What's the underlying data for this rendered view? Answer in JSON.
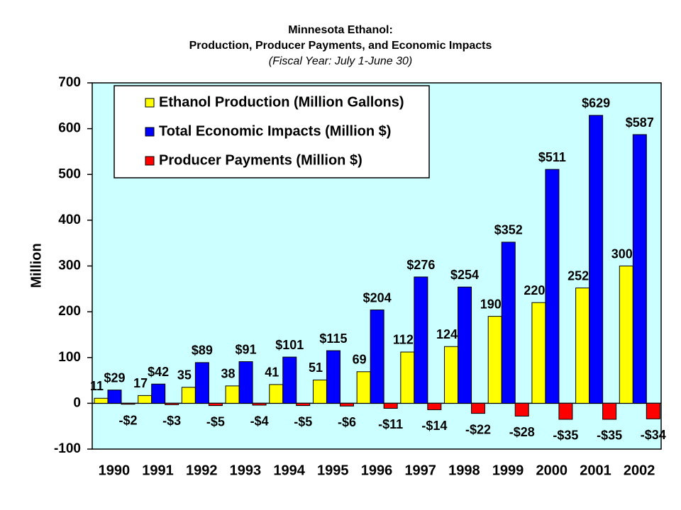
{
  "chart_data": {
    "type": "bar",
    "title": "Minnesota Ethanol:",
    "subtitle": "Production, Producer Payments, and Economic Impacts",
    "note": "(Fiscal Year: July 1-June 30)",
    "y_label": "Million",
    "categories": [
      "1990",
      "1991",
      "1992",
      "1993",
      "1994",
      "1995",
      "1996",
      "1997",
      "1998",
      "1999",
      "2000",
      "2001",
      "2002"
    ],
    "series": [
      {
        "name": "Ethanol Production (Million Gallons)",
        "color": "#ffff00",
        "values": [
          11,
          17,
          35,
          38,
          41,
          51,
          69,
          112,
          124,
          190,
          220,
          252,
          300
        ]
      },
      {
        "name": "Total Economic Impacts (Million $)",
        "color": "#0000ff",
        "values": [
          29,
          42,
          89,
          91,
          101,
          115,
          204,
          276,
          254,
          352,
          511,
          629,
          587
        ],
        "value_labels": [
          "$29",
          "$42",
          "$89",
          "$91",
          "$101",
          "$115",
          "$204",
          "$276",
          "$254",
          "$352",
          "$511",
          "$629",
          "$587"
        ]
      },
      {
        "name": "Producer Payments (Million $)",
        "color": "#ff0000",
        "values": [
          -2,
          -3,
          -5,
          -4,
          -5,
          -6,
          -11,
          -14,
          -22,
          -28,
          -35,
          -35,
          -34
        ],
        "value_labels": [
          "-$2",
          "-$3",
          "-$5",
          "-$4",
          "-$5",
          "-$6",
          "-$11",
          "-$14",
          "-$22",
          "-$28",
          "-$35",
          "-$35",
          "-$34"
        ]
      }
    ],
    "ylim": [
      -100,
      700
    ],
    "yticks": [
      -100,
      0,
      100,
      200,
      300,
      400,
      500,
      600,
      700
    ],
    "grid": false
  }
}
